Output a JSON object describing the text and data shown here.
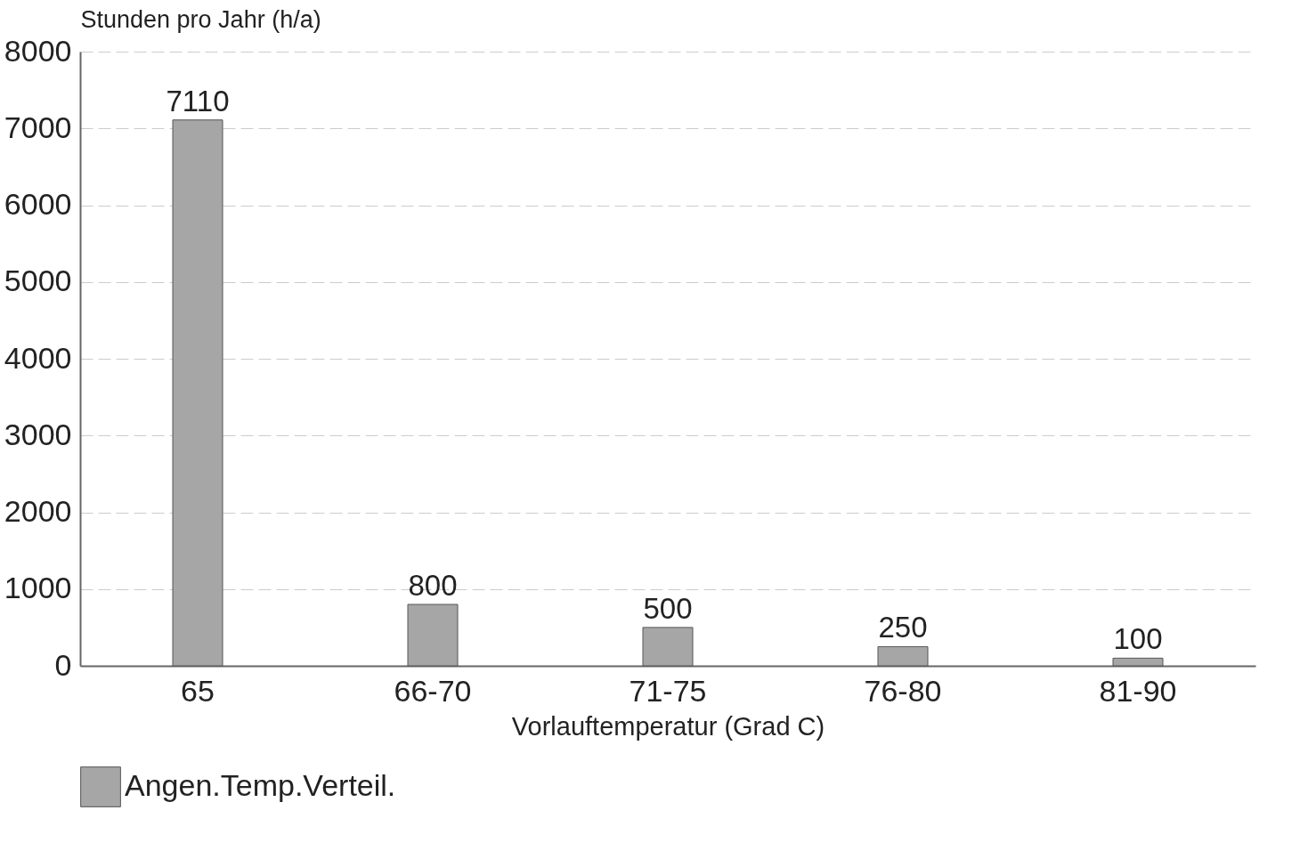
{
  "chart_data": {
    "type": "bar",
    "xlabel": "Vorlauftemperatur (Grad C)",
    "ylabel": "Stunden pro Jahr (h/a)",
    "categories": [
      "65",
      "66-70",
      "71-75",
      "76-80",
      "81-90"
    ],
    "series": [
      {
        "name": "Angen.Temp.Verteil.",
        "color": "#a6a6a6",
        "values": [
          7110,
          800,
          500,
          250,
          100
        ]
      }
    ],
    "ylim": [
      0,
      8000
    ],
    "yticks": [
      0,
      1000,
      2000,
      3000,
      4000,
      5000,
      6000,
      7000,
      8000
    ],
    "grid": "y",
    "legend": "bottom",
    "data_labels": true
  }
}
